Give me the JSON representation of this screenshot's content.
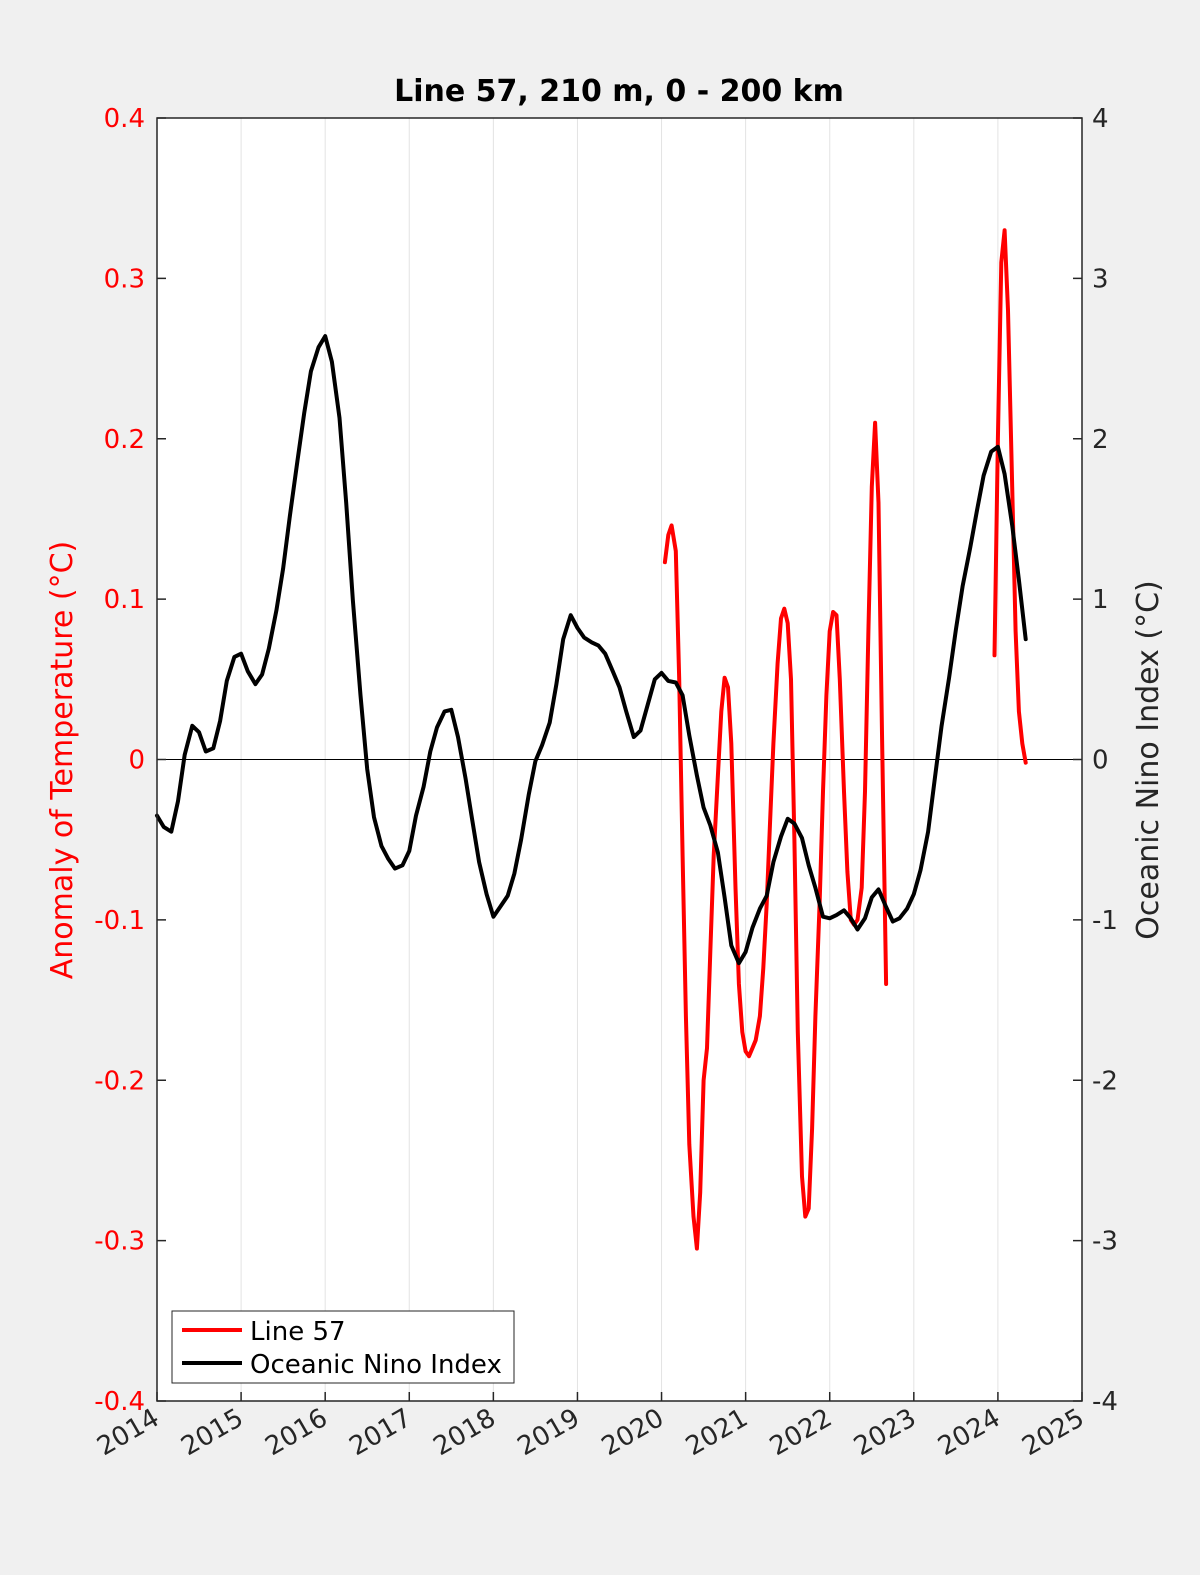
{
  "chart_data": {
    "type": "line",
    "title": "Line 57, 210 m, 0 - 200 km",
    "xlabel": "",
    "ylabel_left": "Anomaly of Temperature (°C)",
    "ylabel_right": "Oceanic Nino Index (°C)",
    "xlim": [
      2014,
      2025
    ],
    "ylim_left": [
      -0.4,
      0.4
    ],
    "ylim_right": [
      -4,
      4
    ],
    "x_ticks": [
      "2014",
      "2015",
      "2016",
      "2017",
      "2018",
      "2019",
      "2020",
      "2021",
      "2022",
      "2023",
      "2024",
      "2025"
    ],
    "y_left_ticks": [
      "-0.4",
      "-0.3",
      "-0.2",
      "-0.1",
      "0",
      "0.1",
      "0.2",
      "0.3",
      "0.4"
    ],
    "y_right_ticks": [
      "-4",
      "-3",
      "-2",
      "-1",
      "0",
      "1",
      "2",
      "3",
      "4"
    ],
    "grid": "vertical",
    "legend_position": "bottom-left",
    "colors": {
      "line57": "#ff0000",
      "oni": "#000000"
    },
    "series": [
      {
        "name": "Line 57",
        "axis": "left",
        "segments": [
          [
            [
              2020.04,
              0.123
            ],
            [
              2020.08,
              0.14
            ],
            [
              2020.12,
              0.146
            ],
            [
              2020.17,
              0.13
            ],
            [
              2020.21,
              0.05
            ],
            [
              2020.25,
              -0.06
            ],
            [
              2020.29,
              -0.16
            ],
            [
              2020.33,
              -0.24
            ],
            [
              2020.38,
              -0.285
            ],
            [
              2020.42,
              -0.305
            ],
            [
              2020.46,
              -0.27
            ],
            [
              2020.5,
              -0.2
            ],
            [
              2020.54,
              -0.18
            ],
            [
              2020.58,
              -0.12
            ],
            [
              2020.62,
              -0.06
            ],
            [
              2020.67,
              -0.01
            ],
            [
              2020.71,
              0.03
            ],
            [
              2020.75,
              0.051
            ],
            [
              2020.79,
              0.045
            ],
            [
              2020.83,
              0.01
            ],
            [
              2020.88,
              -0.08
            ],
            [
              2020.92,
              -0.14
            ],
            [
              2020.96,
              -0.17
            ],
            [
              2021.0,
              -0.182
            ],
            [
              2021.04,
              -0.185
            ],
            [
              2021.08,
              -0.18
            ],
            [
              2021.12,
              -0.175
            ],
            [
              2021.17,
              -0.16
            ],
            [
              2021.21,
              -0.13
            ],
            [
              2021.25,
              -0.09
            ],
            [
              2021.29,
              -0.04
            ],
            [
              2021.33,
              0.01
            ],
            [
              2021.38,
              0.06
            ],
            [
              2021.42,
              0.088
            ],
            [
              2021.46,
              0.094
            ],
            [
              2021.5,
              0.085
            ],
            [
              2021.54,
              0.05
            ],
            [
              2021.58,
              -0.05
            ],
            [
              2021.62,
              -0.17
            ],
            [
              2021.67,
              -0.26
            ],
            [
              2021.71,
              -0.285
            ],
            [
              2021.75,
              -0.28
            ],
            [
              2021.79,
              -0.23
            ],
            [
              2021.83,
              -0.16
            ],
            [
              2021.88,
              -0.09
            ],
            [
              2021.92,
              -0.02
            ],
            [
              2021.96,
              0.04
            ],
            [
              2022.0,
              0.08
            ],
            [
              2022.04,
              0.092
            ],
            [
              2022.08,
              0.09
            ],
            [
              2022.12,
              0.05
            ],
            [
              2022.17,
              -0.02
            ],
            [
              2022.21,
              -0.07
            ],
            [
              2022.25,
              -0.1
            ],
            [
              2022.29,
              -0.103
            ],
            [
              2022.33,
              -0.1
            ],
            [
              2022.38,
              -0.08
            ],
            [
              2022.42,
              -0.02
            ],
            [
              2022.46,
              0.08
            ],
            [
              2022.5,
              0.17
            ],
            [
              2022.54,
              0.21
            ],
            [
              2022.58,
              0.16
            ],
            [
              2022.62,
              0.02
            ],
            [
              2022.67,
              -0.14
            ]
          ],
          [
            [
              2023.96,
              0.065
            ],
            [
              2024.0,
              0.2
            ],
            [
              2024.04,
              0.31
            ],
            [
              2024.08,
              0.33
            ],
            [
              2024.12,
              0.28
            ],
            [
              2024.17,
              0.17
            ],
            [
              2024.21,
              0.08
            ],
            [
              2024.25,
              0.03
            ],
            [
              2024.29,
              0.01
            ],
            [
              2024.33,
              -0.002
            ]
          ]
        ]
      },
      {
        "name": "Oceanic Nino Index",
        "axis": "right",
        "segments": [
          [
            [
              2014.0,
              -0.35
            ],
            [
              2014.08,
              -0.42
            ],
            [
              2014.17,
              -0.45
            ],
            [
              2014.25,
              -0.26
            ],
            [
              2014.33,
              0.03
            ],
            [
              2014.42,
              0.21
            ],
            [
              2014.5,
              0.17
            ],
            [
              2014.58,
              0.05
            ],
            [
              2014.67,
              0.07
            ],
            [
              2014.75,
              0.24
            ],
            [
              2014.83,
              0.49
            ],
            [
              2014.92,
              0.64
            ],
            [
              2015.0,
              0.66
            ],
            [
              2015.08,
              0.55
            ],
            [
              2015.17,
              0.47
            ],
            [
              2015.25,
              0.53
            ],
            [
              2015.33,
              0.69
            ],
            [
              2015.42,
              0.93
            ],
            [
              2015.5,
              1.19
            ],
            [
              2015.58,
              1.52
            ],
            [
              2015.67,
              1.86
            ],
            [
              2015.75,
              2.16
            ],
            [
              2015.83,
              2.42
            ],
            [
              2015.92,
              2.57
            ],
            [
              2016.0,
              2.64
            ],
            [
              2016.08,
              2.48
            ],
            [
              2016.17,
              2.13
            ],
            [
              2016.25,
              1.6
            ],
            [
              2016.33,
              0.99
            ],
            [
              2016.42,
              0.4
            ],
            [
              2016.5,
              -0.06
            ],
            [
              2016.58,
              -0.36
            ],
            [
              2016.67,
              -0.54
            ],
            [
              2016.75,
              -0.62
            ],
            [
              2016.83,
              -0.68
            ],
            [
              2016.92,
              -0.66
            ],
            [
              2017.0,
              -0.57
            ],
            [
              2017.08,
              -0.35
            ],
            [
              2017.17,
              -0.17
            ],
            [
              2017.25,
              0.05
            ],
            [
              2017.33,
              0.2
            ],
            [
              2017.42,
              0.3
            ],
            [
              2017.5,
              0.31
            ],
            [
              2017.58,
              0.14
            ],
            [
              2017.67,
              -0.12
            ],
            [
              2017.75,
              -0.38
            ],
            [
              2017.83,
              -0.64
            ],
            [
              2017.92,
              -0.84
            ],
            [
              2018.0,
              -0.98
            ],
            [
              2018.08,
              -0.92
            ],
            [
              2018.17,
              -0.85
            ],
            [
              2018.25,
              -0.71
            ],
            [
              2018.33,
              -0.5
            ],
            [
              2018.42,
              -0.22
            ],
            [
              2018.5,
              -0.01
            ],
            [
              2018.58,
              0.09
            ],
            [
              2018.67,
              0.23
            ],
            [
              2018.75,
              0.47
            ],
            [
              2018.83,
              0.75
            ],
            [
              2018.92,
              0.9
            ],
            [
              2019.0,
              0.82
            ],
            [
              2019.08,
              0.76
            ],
            [
              2019.17,
              0.73
            ],
            [
              2019.25,
              0.71
            ],
            [
              2019.33,
              0.66
            ],
            [
              2019.42,
              0.55
            ],
            [
              2019.5,
              0.45
            ],
            [
              2019.58,
              0.3
            ],
            [
              2019.67,
              0.14
            ],
            [
              2019.75,
              0.18
            ],
            [
              2019.83,
              0.33
            ],
            [
              2019.92,
              0.5
            ],
            [
              2020.0,
              0.54
            ],
            [
              2020.08,
              0.49
            ],
            [
              2020.17,
              0.48
            ],
            [
              2020.25,
              0.4
            ],
            [
              2020.33,
              0.15
            ],
            [
              2020.42,
              -0.1
            ],
            [
              2020.5,
              -0.3
            ],
            [
              2020.58,
              -0.41
            ],
            [
              2020.67,
              -0.58
            ],
            [
              2020.75,
              -0.86
            ],
            [
              2020.83,
              -1.16
            ],
            [
              2020.92,
              -1.27
            ],
            [
              2021.0,
              -1.2
            ],
            [
              2021.08,
              -1.05
            ],
            [
              2021.17,
              -0.93
            ],
            [
              2021.25,
              -0.85
            ],
            [
              2021.33,
              -0.64
            ],
            [
              2021.42,
              -0.48
            ],
            [
              2021.5,
              -0.37
            ],
            [
              2021.58,
              -0.4
            ],
            [
              2021.67,
              -0.49
            ],
            [
              2021.75,
              -0.66
            ],
            [
              2021.83,
              -0.8
            ],
            [
              2021.92,
              -0.98
            ],
            [
              2022.0,
              -0.99
            ],
            [
              2022.08,
              -0.97
            ],
            [
              2022.17,
              -0.94
            ],
            [
              2022.25,
              -0.99
            ],
            [
              2022.33,
              -1.06
            ],
            [
              2022.42,
              -0.99
            ],
            [
              2022.5,
              -0.86
            ],
            [
              2022.58,
              -0.81
            ],
            [
              2022.67,
              -0.92
            ],
            [
              2022.75,
              -1.01
            ],
            [
              2022.83,
              -0.99
            ],
            [
              2022.92,
              -0.93
            ],
            [
              2023.0,
              -0.84
            ],
            [
              2023.08,
              -0.69
            ],
            [
              2023.17,
              -0.45
            ],
            [
              2023.25,
              -0.12
            ],
            [
              2023.33,
              0.21
            ],
            [
              2023.42,
              0.51
            ],
            [
              2023.5,
              0.81
            ],
            [
              2023.58,
              1.08
            ],
            [
              2023.67,
              1.32
            ],
            [
              2023.75,
              1.55
            ],
            [
              2023.83,
              1.77
            ],
            [
              2023.92,
              1.92
            ],
            [
              2024.0,
              1.95
            ],
            [
              2024.08,
              1.78
            ],
            [
              2024.17,
              1.46
            ],
            [
              2024.25,
              1.12
            ],
            [
              2024.33,
              0.75
            ]
          ]
        ]
      }
    ]
  }
}
